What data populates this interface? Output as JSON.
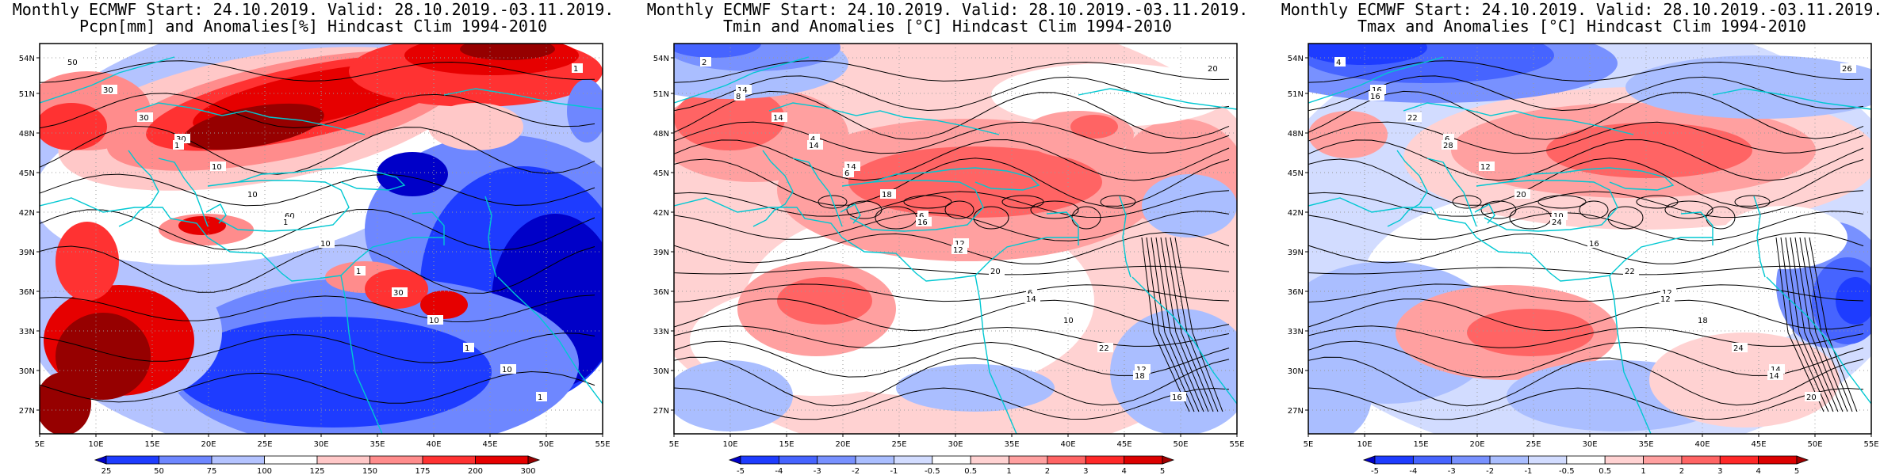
{
  "panels": [
    {
      "title_line1": "Monthly ECMWF Start: 24.10.2019. Valid: 28.10.2019.-03.11.2019.",
      "title_line2": "Pcpn[mm] and Anomalies[%] Hindcast Clim 1994-2010",
      "colorbar": {
        "labels": [
          "25",
          "50",
          "75",
          "100",
          "125",
          "150",
          "175",
          "200",
          "300"
        ],
        "colors": [
          "#0000c8",
          "#1e3cff",
          "#6e87ff",
          "#b4c3ff",
          "#ffffff",
          "#ffc8c8",
          "#ff8c8c",
          "#ff3232",
          "#e60000",
          "#960000"
        ]
      },
      "contour_labels": [
        "50",
        "30",
        "60",
        "30",
        "10",
        "30",
        "10",
        "10",
        "10",
        "1",
        "30",
        "10",
        "1",
        "1",
        "1",
        "1",
        "1"
      ]
    },
    {
      "title_line1": "Monthly ECMWF Start: 24.10.2019. Valid: 28.10.2019.-03.11.2019.",
      "title_line2": "Tmin and Anomalies [°C] Hindcast Clim 1994-2010",
      "colorbar": {
        "labels": [
          "-5",
          "-4",
          "-3",
          "-2",
          "-1",
          "-0.5",
          "0.5",
          "1",
          "2",
          "3",
          "4",
          "5"
        ],
        "colors": [
          "#0000c8",
          "#1e3cff",
          "#4664ff",
          "#7891ff",
          "#aabeff",
          "#d2dcff",
          "#ffffff",
          "#ffd2d2",
          "#ffa0a0",
          "#ff6464",
          "#ff2828",
          "#dc0000",
          "#a00000"
        ]
      },
      "contour_labels": [
        "2",
        "4",
        "6",
        "6",
        "12",
        "14",
        "14",
        "12",
        "10",
        "16",
        "14",
        "18",
        "20",
        "22",
        "20",
        "14",
        "16",
        "14",
        "18",
        "8",
        "6",
        "12"
      ]
    },
    {
      "title_line1": "Monthly ECMWF Start: 24.10.2019. Valid: 28.10.2019.-03.11.2019.",
      "title_line2": "Tmax and Anomalies [°C] Hindcast Clim 1994-2010",
      "colorbar": {
        "labels": [
          "-5",
          "-4",
          "-3",
          "-2",
          "-1",
          "-0.5",
          "0.5",
          "1",
          "2",
          "3",
          "4",
          "5"
        ],
        "colors": [
          "#0000c8",
          "#1e3cff",
          "#4664ff",
          "#7891ff",
          "#aabeff",
          "#d2dcff",
          "#ffffff",
          "#ffd2d2",
          "#ffa0a0",
          "#ff6464",
          "#ff2828",
          "#dc0000",
          "#a00000"
        ]
      },
      "contour_labels": [
        "4",
        "6",
        "10",
        "12",
        "14",
        "16",
        "12",
        "16",
        "18",
        "20",
        "22",
        "20",
        "22",
        "24",
        "26",
        "28",
        "24",
        "12",
        "14",
        "16"
      ]
    }
  ],
  "lat_labels": [
    "54N",
    "51N",
    "48N",
    "45N",
    "42N",
    "39N",
    "36N",
    "33N",
    "30N",
    "27N"
  ],
  "lon_labels": [
    "5E",
    "10E",
    "15E",
    "20E",
    "25E",
    "30E",
    "35E",
    "40E",
    "45E",
    "50E",
    "55E"
  ]
}
